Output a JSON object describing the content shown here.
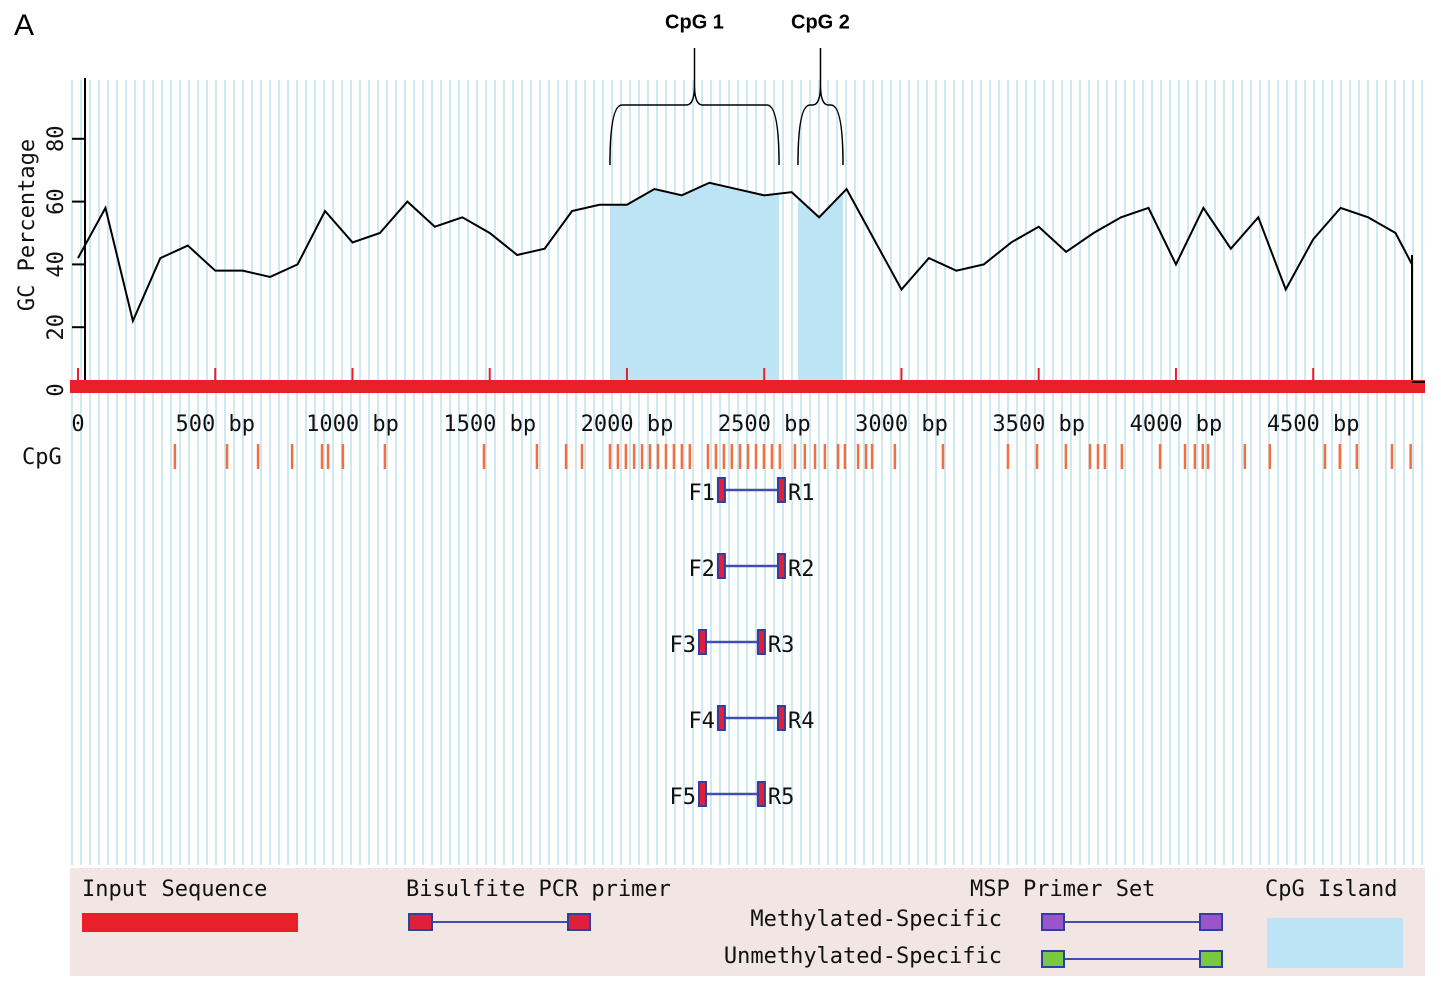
{
  "chart_data": {
    "type": "line",
    "panel_label": "A",
    "ylabel": "GC Percentage",
    "ylim": [
      0,
      100
    ],
    "yticks": [
      0,
      20,
      40,
      60,
      80
    ],
    "xlim": [
      0,
      4860
    ],
    "xticks": [
      0,
      {
        "value": 500,
        "label": "500 bp"
      },
      {
        "value": 1000,
        "label": "1000 bp"
      },
      {
        "value": 1500,
        "label": "1500 bp"
      },
      {
        "value": 2000,
        "label": "2000 bp"
      },
      {
        "value": 2500,
        "label": "2500 bp"
      },
      {
        "value": 3000,
        "label": "3000 bp"
      },
      {
        "value": 3500,
        "label": "3500 bp"
      },
      {
        "value": 4000,
        "label": "4000 bp"
      },
      {
        "value": 4500,
        "label": "4500 bp"
      }
    ],
    "x": [
      0,
      100,
      200,
      300,
      400,
      500,
      600,
      700,
      800,
      900,
      1000,
      1100,
      1200,
      1300,
      1400,
      1500,
      1600,
      1700,
      1800,
      1900,
      2000,
      2100,
      2200,
      2300,
      2400,
      2500,
      2600,
      2700,
      2800,
      2900,
      3000,
      3100,
      3200,
      3300,
      3400,
      3500,
      3600,
      3700,
      3800,
      3900,
      4000,
      4100,
      4200,
      4300,
      4400,
      4500,
      4600,
      4700,
      4800,
      4860
    ],
    "series": [
      {
        "name": "GC Percentage",
        "color": "#000000",
        "values": [
          42,
          58,
          22,
          42,
          46,
          38,
          38,
          36,
          40,
          57,
          47,
          50,
          60,
          52,
          55,
          50,
          43,
          45,
          57,
          59,
          59,
          64,
          62,
          66,
          64,
          62,
          63,
          55,
          64,
          48,
          32,
          42,
          38,
          40,
          47,
          52,
          44,
          50,
          55,
          58,
          40,
          58,
          45,
          55,
          32,
          48,
          58,
          55,
          50,
          40
        ]
      }
    ],
    "islands": {
      "color": "#bde4f4",
      "items": [
        {
          "label": "CpG 1",
          "start": 1938,
          "end": 2554
        },
        {
          "label": "CpG 2",
          "start": 2623,
          "end": 2787
        }
      ]
    },
    "cpg_sites": {
      "label": "CpG",
      "color": "#f07040",
      "positions": [
        353,
        543,
        656,
        780,
        889,
        911,
        965,
        1118,
        1479,
        1672,
        1778,
        1836,
        1938,
        1967,
        1996,
        2026,
        2055,
        2084,
        2113,
        2142,
        2171,
        2200,
        2229,
        2295,
        2324,
        2353,
        2382,
        2412,
        2441,
        2470,
        2499,
        2528,
        2557,
        2612,
        2648,
        2685,
        2721,
        2769,
        2794,
        2842,
        2871,
        2893,
        2976,
        3151,
        3388,
        3494,
        3599,
        3687,
        3716,
        3741,
        3803,
        3942,
        4033,
        4069,
        4098,
        4117,
        4251,
        4342,
        4543,
        4597,
        4659,
        4787,
        4855
      ]
    },
    "primers": [
      {
        "forward": "F1",
        "reverse": "R1",
        "start": 2346,
        "end": 2561
      },
      {
        "forward": "F2",
        "reverse": "R2",
        "start": 2346,
        "end": 2561
      },
      {
        "forward": "F3",
        "reverse": "R3",
        "start": 2277,
        "end": 2488
      },
      {
        "forward": "F4",
        "reverse": "R4",
        "start": 2346,
        "end": 2561
      },
      {
        "forward": "F5",
        "reverse": "R5",
        "start": 2277,
        "end": 2488
      }
    ],
    "input_color": "#e8202a",
    "legend": {
      "input": "Input Sequence",
      "bisulfite": "Bisulfite PCR primer",
      "msp": "MSP Primer Set",
      "methylated": "Methylated-Specific",
      "unmethylated": "Unmethylated-Specific",
      "island": "CpG Island"
    }
  }
}
